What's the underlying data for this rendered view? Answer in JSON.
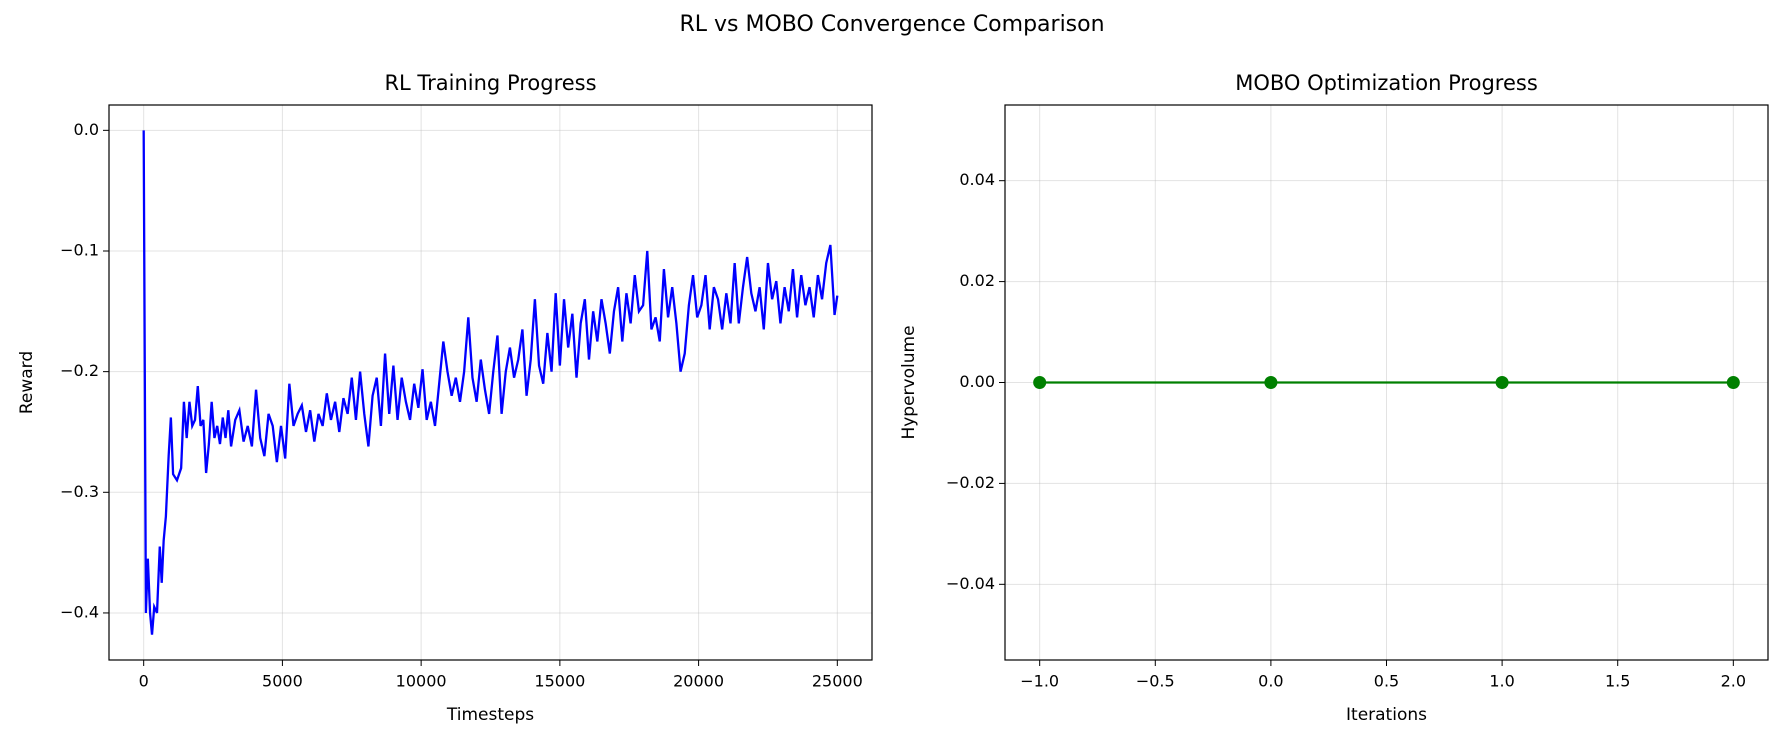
{
  "title": "RL vs MOBO Convergence Comparison",
  "chart_data": [
    {
      "type": "line",
      "title": "RL Training Progress",
      "x_label": "Timesteps",
      "y_label": "Reward",
      "color": "#0000ff",
      "marker": false,
      "grid": true,
      "xlim": [
        -1250,
        26250
      ],
      "xticks": [
        0,
        5000,
        10000,
        15000,
        20000,
        25000
      ],
      "ylim": [
        -0.439,
        0.021
      ],
      "yticks": [
        {
          "value": 0,
          "label": "0.0"
        },
        {
          "value": -0.1,
          "label": "−0.1"
        },
        {
          "value": -0.2,
          "label": "−0.2"
        },
        {
          "value": -0.3,
          "label": "−0.3"
        },
        {
          "value": -0.4,
          "label": "−0.4"
        }
      ],
      "x": [
        0,
        80,
        150,
        230,
        300,
        380,
        480,
        580,
        650,
        720,
        800,
        900,
        980,
        1060,
        1200,
        1350,
        1450,
        1550,
        1650,
        1750,
        1850,
        1950,
        2050,
        2150,
        2250,
        2350,
        2450,
        2550,
        2650,
        2750,
        2850,
        2950,
        3050,
        3150,
        3300,
        3450,
        3600,
        3750,
        3900,
        4050,
        4200,
        4350,
        4500,
        4650,
        4800,
        4950,
        5100,
        5250,
        5400,
        5550,
        5700,
        5850,
        6000,
        6150,
        6300,
        6450,
        6600,
        6750,
        6900,
        7050,
        7200,
        7350,
        7500,
        7650,
        7800,
        7950,
        8100,
        8250,
        8400,
        8550,
        8700,
        8850,
        9000,
        9150,
        9300,
        9450,
        9600,
        9750,
        9900,
        10050,
        10200,
        10350,
        10500,
        10650,
        10800,
        10950,
        11100,
        11250,
        11400,
        11550,
        11700,
        11850,
        12000,
        12150,
        12300,
        12450,
        12600,
        12750,
        12900,
        13050,
        13200,
        13350,
        13500,
        13650,
        13800,
        13950,
        14100,
        14250,
        14400,
        14550,
        14700,
        14850,
        15000,
        15150,
        15300,
        15450,
        15600,
        15750,
        15900,
        16050,
        16200,
        16350,
        16500,
        16650,
        16800,
        16950,
        17100,
        17250,
        17400,
        17550,
        17700,
        17850,
        18000,
        18150,
        18300,
        18450,
        18600,
        18750,
        18900,
        19050,
        19200,
        19350,
        19500,
        19650,
        19800,
        19950,
        20100,
        20250,
        20400,
        20550,
        20700,
        20850,
        21000,
        21150,
        21300,
        21450,
        21600,
        21750,
        21900,
        22050,
        22200,
        22350,
        22500,
        22650,
        22800,
        22950,
        23100,
        23250,
        23400,
        23550,
        23700,
        23850,
        24000,
        24150,
        24300,
        24450,
        24600,
        24750,
        24900,
        25000
      ],
      "values": [
        0,
        -0.4,
        -0.355,
        -0.4,
        -0.418,
        -0.395,
        -0.4,
        -0.345,
        -0.375,
        -0.34,
        -0.32,
        -0.27,
        -0.238,
        -0.285,
        -0.29,
        -0.28,
        -0.225,
        -0.255,
        -0.225,
        -0.245,
        -0.24,
        -0.212,
        -0.245,
        -0.24,
        -0.284,
        -0.26,
        -0.225,
        -0.255,
        -0.245,
        -0.26,
        -0.238,
        -0.255,
        -0.232,
        -0.262,
        -0.24,
        -0.232,
        -0.258,
        -0.245,
        -0.262,
        -0.215,
        -0.255,
        -0.27,
        -0.235,
        -0.245,
        -0.275,
        -0.245,
        -0.272,
        -0.21,
        -0.245,
        -0.235,
        -0.228,
        -0.25,
        -0.232,
        -0.258,
        -0.235,
        -0.245,
        -0.218,
        -0.24,
        -0.225,
        -0.25,
        -0.222,
        -0.235,
        -0.205,
        -0.24,
        -0.2,
        -0.235,
        -0.262,
        -0.22,
        -0.205,
        -0.245,
        -0.185,
        -0.235,
        -0.195,
        -0.24,
        -0.205,
        -0.225,
        -0.24,
        -0.21,
        -0.23,
        -0.198,
        -0.24,
        -0.225,
        -0.245,
        -0.21,
        -0.175,
        -0.2,
        -0.22,
        -0.205,
        -0.225,
        -0.2,
        -0.155,
        -0.205,
        -0.225,
        -0.19,
        -0.215,
        -0.235,
        -0.2,
        -0.17,
        -0.235,
        -0.2,
        -0.18,
        -0.205,
        -0.19,
        -0.165,
        -0.22,
        -0.19,
        -0.14,
        -0.195,
        -0.21,
        -0.168,
        -0.2,
        -0.135,
        -0.195,
        -0.14,
        -0.18,
        -0.152,
        -0.205,
        -0.16,
        -0.14,
        -0.19,
        -0.15,
        -0.175,
        -0.14,
        -0.16,
        -0.185,
        -0.15,
        -0.13,
        -0.175,
        -0.135,
        -0.16,
        -0.12,
        -0.15,
        -0.145,
        -0.1,
        -0.165,
        -0.155,
        -0.175,
        -0.115,
        -0.155,
        -0.13,
        -0.16,
        -0.2,
        -0.185,
        -0.145,
        -0.12,
        -0.155,
        -0.145,
        -0.12,
        -0.165,
        -0.13,
        -0.14,
        -0.165,
        -0.135,
        -0.16,
        -0.11,
        -0.16,
        -0.13,
        -0.105,
        -0.135,
        -0.15,
        -0.13,
        -0.165,
        -0.11,
        -0.14,
        -0.125,
        -0.16,
        -0.13,
        -0.15,
        -0.115,
        -0.155,
        -0.12,
        -0.145,
        -0.13,
        -0.155,
        -0.12,
        -0.14,
        -0.11,
        -0.095,
        -0.153,
        -0.137
      ]
    },
    {
      "type": "line",
      "title": "MOBO Optimization Progress",
      "x_label": "Iterations",
      "y_label": "Hypervolume",
      "color": "#008000",
      "marker": true,
      "grid": true,
      "xlim": [
        -1.15,
        2.15
      ],
      "xticks": [
        {
          "value": -1,
          "label": "−1.0"
        },
        {
          "value": -0.5,
          "label": "−0.5"
        },
        {
          "value": 0,
          "label": "0.0"
        },
        {
          "value": 0.5,
          "label": "0.5"
        },
        {
          "value": 1,
          "label": "1.0"
        },
        {
          "value": 1.5,
          "label": "1.5"
        },
        {
          "value": 2,
          "label": "2.0"
        }
      ],
      "ylim": [
        -0.055,
        0.055
      ],
      "yticks": [
        {
          "value": -0.04,
          "label": "−0.04"
        },
        {
          "value": -0.02,
          "label": "−0.02"
        },
        {
          "value": 0,
          "label": "0.00"
        },
        {
          "value": 0.02,
          "label": "0.02"
        },
        {
          "value": 0.04,
          "label": "0.04"
        }
      ],
      "x": [
        -1,
        0,
        1,
        2
      ],
      "values": [
        0,
        0,
        0,
        0
      ]
    }
  ]
}
